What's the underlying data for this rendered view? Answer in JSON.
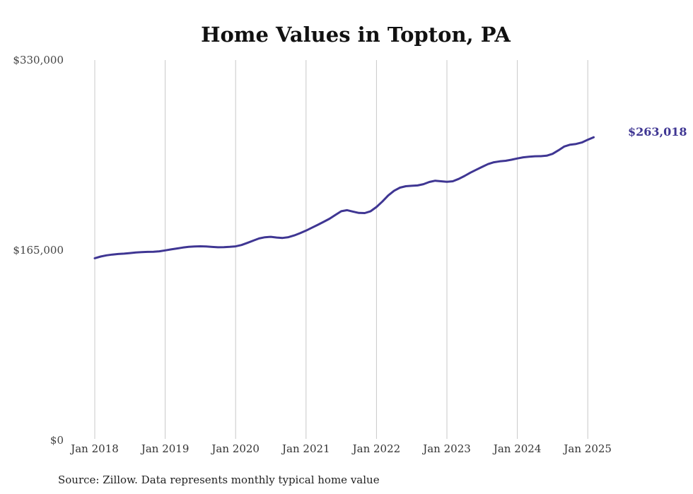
{
  "chart_data": {
    "type": "line",
    "title": "Home Values in Topton, PA",
    "xlabel": "",
    "ylabel": "",
    "source": "Source: Zillow. Data represents monthly typical home value",
    "y_ticks": [
      "$0",
      "$165,000",
      "$330,000"
    ],
    "y_tick_values": [
      0,
      165000,
      330000
    ],
    "ylim": [
      0,
      330000
    ],
    "x_ticks": [
      "Jan 2018",
      "Jan 2019",
      "Jan 2020",
      "Jan 2021",
      "Jan 2022",
      "Jan 2023",
      "Jan 2024",
      "Jan 2025"
    ],
    "x_start": "2018-01",
    "x_end": "2025-06",
    "grid": "vertical",
    "line_color": "#3f3693",
    "end_label": "$263,018",
    "series": [
      {
        "values": [
          158000,
          159500,
          160500,
          161200,
          161700,
          162000,
          162500,
          163000,
          163300,
          163500,
          163600,
          164000,
          164800,
          165700,
          166500,
          167300,
          167900,
          168200,
          168400,
          168200,
          167800,
          167500,
          167600,
          167900,
          168300,
          169500,
          171300,
          173300,
          175200,
          176200,
          176600,
          176000,
          175600,
          176300,
          177800,
          179800,
          182000,
          184500,
          187000,
          189600,
          192300,
          195600,
          198800,
          199700,
          198500,
          197300,
          197200,
          198800,
          202500,
          207200,
          212500,
          216600,
          219300,
          220500,
          220900,
          221200,
          222300,
          224200,
          225300,
          224800,
          224400,
          224800,
          226800,
          229400,
          232300,
          234800,
          237300,
          239700,
          241300,
          242100,
          242600,
          243500,
          244600,
          245600,
          246100,
          246500,
          246600,
          247000,
          248600,
          251700,
          255000,
          256600,
          257200,
          258500,
          260900,
          263018
        ]
      }
    ]
  }
}
